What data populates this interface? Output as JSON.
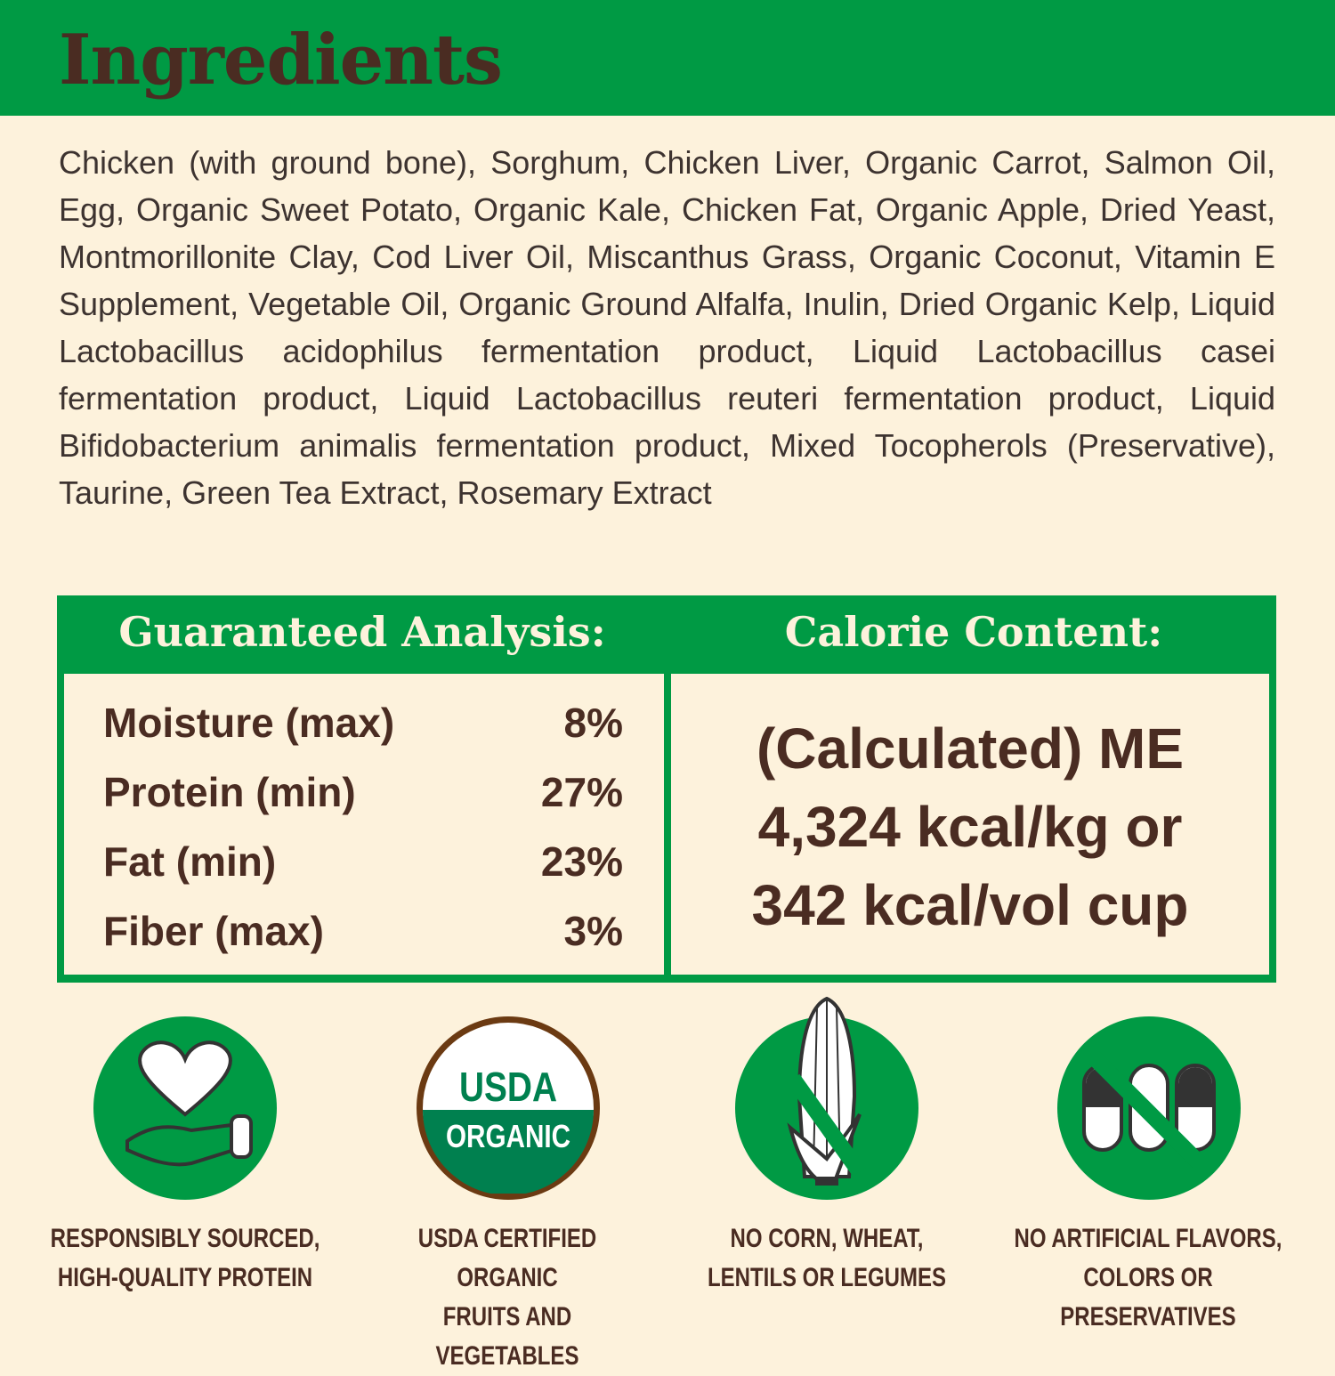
{
  "header": {
    "title": "Ingredients"
  },
  "ingredients": "Chicken (with ground bone), Sorghum, Chicken Liver, Organic Carrot, Salmon Oil, Egg, Organic Sweet Potato, Organic Kale, Chicken Fat, Organic Apple, Dried Yeast, Montmorillonite Clay, Cod Liver Oil, Miscanthus Grass, Organic Coconut, Vitamin E Supplement, Vegetable Oil, Organic Ground Alfalfa, Inulin, Dried Organic Kelp, Liquid Lactobacillus acidophilus fermentation product, Liquid Lactobacillus casei fermentation product, Liquid Lactobacillus reuteri fermentation product, Liquid Bifidobacterium animalis fermentation product, Mixed Tocopherols (Preservative), Taurine, Green Tea Extract, Rosemary Extract",
  "analysis": {
    "heading": "Guaranteed Analysis:",
    "rows": [
      {
        "label": "Moisture (max)",
        "value": "8%"
      },
      {
        "label": "Protein (min)",
        "value": "27%"
      },
      {
        "label": "Fat (min)",
        "value": "23%"
      },
      {
        "label": "Fiber (max)",
        "value": "3%"
      }
    ]
  },
  "calorie": {
    "heading": "Calorie Content:",
    "lines": [
      "(Calculated) ME",
      "4,324 kcal/kg or",
      "342 kcal/vol cup"
    ]
  },
  "badges": [
    {
      "icon": "heart-hand-icon",
      "lines": [
        "RESPONSIBLY SOURCED,",
        "HIGH-QUALITY PROTEIN"
      ]
    },
    {
      "icon": "usda-organic-seal",
      "seal_text": [
        "USDA",
        "ORGANIC"
      ],
      "lines": [
        "USDA CERTIFIED ORGANIC",
        "FRUITS AND VEGETABLES"
      ]
    },
    {
      "icon": "no-corn-icon",
      "lines": [
        "NO CORN, WHEAT,",
        "LENTILS OR LEGUMES"
      ]
    },
    {
      "icon": "no-capsules-icon",
      "lines": [
        "NO ARTIFICIAL FLAVORS,",
        "COLORS OR PRESERVATIVES"
      ]
    }
  ],
  "colors": {
    "green": "#009a44",
    "cream": "#fdf2dc",
    "brown": "#4a2c22"
  }
}
